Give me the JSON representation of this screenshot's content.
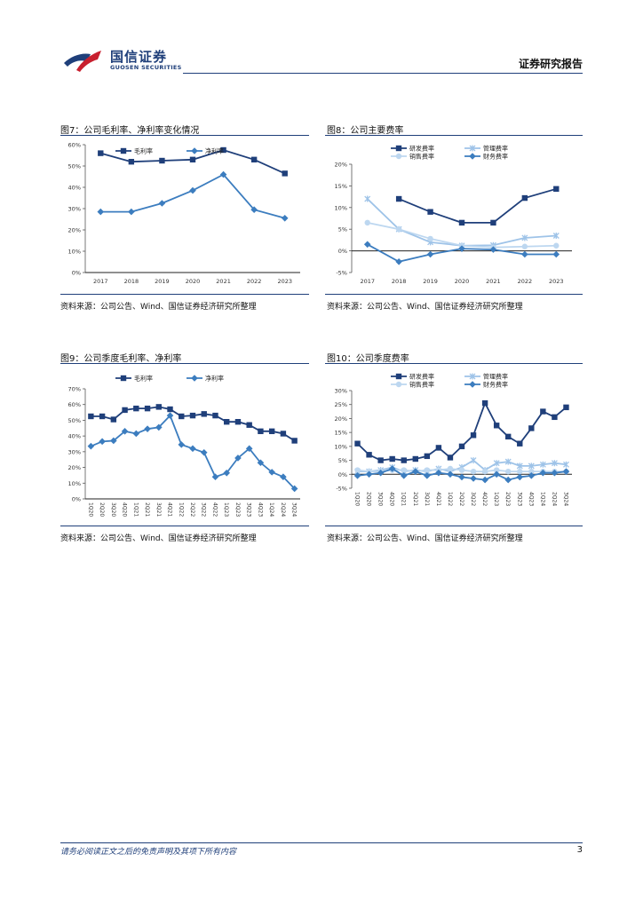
{
  "header": {
    "logo_cn": "国信证券",
    "logo_en": "GUOSEN SECURITIES",
    "report_type": "证券研究报告"
  },
  "figures": [
    {
      "title": "图7：公司毛利率、净利率变化情况",
      "source": "资料来源：公司公告、Wind、国信证券经济研究所整理"
    },
    {
      "title": "图8：公司主要费率",
      "source": "资料来源：公司公告、Wind、国信证券经济研究所整理"
    },
    {
      "title": "图9：公司季度毛利率、净利率",
      "source": "资料来源：公司公告、Wind、国信证券经济研究所整理"
    },
    {
      "title": "图10：公司季度费率",
      "source": "资料来源：公司公告、Wind、国信证券经济研究所整理"
    }
  ],
  "footer": {
    "disclaimer": "请务必阅读正文之后的免责声明及其项下所有内容",
    "page": "3"
  },
  "colors": {
    "dark": "#1f3f7a",
    "mid": "#3c7dbf",
    "light": "#9ec3e8",
    "lighter": "#bdd7f0"
  },
  "chart_data": [
    {
      "type": "line",
      "categories": [
        "2017",
        "2018",
        "2019",
        "2020",
        "2021",
        "2022",
        "2023"
      ],
      "ylim": [
        0,
        60
      ],
      "yticks": [
        0,
        10,
        20,
        30,
        40,
        50,
        60
      ],
      "ytick_labels": [
        "0%",
        "10%",
        "20%",
        "30%",
        "40%",
        "50%",
        "60%"
      ],
      "series": [
        {
          "name": "毛利率",
          "marker": "square",
          "color": "#1f3f7a",
          "values": [
            56,
            52,
            52.5,
            53,
            57.5,
            53,
            46.5
          ]
        },
        {
          "name": "净利率",
          "marker": "diamond",
          "color": "#3c7dbf",
          "values": [
            28.5,
            28.5,
            32.5,
            38.5,
            46,
            29.5,
            25.5
          ]
        }
      ]
    },
    {
      "type": "line",
      "categories": [
        "2017",
        "2018",
        "2019",
        "2020",
        "2021",
        "2022",
        "2023"
      ],
      "ylim": [
        -5,
        20
      ],
      "yticks": [
        -5,
        0,
        5,
        10,
        15,
        20
      ],
      "ytick_labels": [
        "-5%",
        "0%",
        "5%",
        "10%",
        "15%",
        "20%"
      ],
      "series": [
        {
          "name": "研发费率",
          "marker": "square",
          "color": "#1f3f7a",
          "values": [
            null,
            12,
            9,
            6.5,
            6.5,
            12.2,
            14.3
          ]
        },
        {
          "name": "管理费率",
          "marker": "cross",
          "color": "#9ec3e8",
          "values": [
            12,
            5,
            2,
            1.2,
            1.3,
            3,
            3.5
          ]
        },
        {
          "name": "销售费率",
          "marker": "circle",
          "color": "#bdd7f0",
          "values": [
            6.5,
            5,
            2.8,
            1.2,
            0.8,
            1,
            1.2
          ]
        },
        {
          "name": "财务费率",
          "marker": "diamond",
          "color": "#3c7dbf",
          "values": [
            1.5,
            -2.5,
            -0.8,
            0.5,
            0.3,
            -0.8,
            -0.8
          ]
        }
      ]
    },
    {
      "type": "line",
      "categories": [
        "1Q20",
        "2Q20",
        "3Q20",
        "4Q20",
        "1Q21",
        "2Q21",
        "3Q21",
        "4Q21",
        "1Q22",
        "2Q22",
        "3Q22",
        "4Q22",
        "1Q23",
        "2Q23",
        "3Q23",
        "4Q23",
        "1Q24",
        "2Q24",
        "3Q24"
      ],
      "ylim": [
        0,
        70
      ],
      "yticks": [
        0,
        10,
        20,
        30,
        40,
        50,
        60,
        70
      ],
      "ytick_labels": [
        "0%",
        "10%",
        "20%",
        "30%",
        "40%",
        "50%",
        "60%",
        "70%"
      ],
      "series": [
        {
          "name": "毛利率",
          "marker": "square",
          "color": "#1f3f7a",
          "values": [
            52.5,
            52.5,
            50.5,
            56.5,
            57.5,
            57.5,
            58.5,
            57,
            52.5,
            53,
            54,
            53,
            49,
            49,
            47,
            43,
            43,
            41.5,
            37
          ]
        },
        {
          "name": "净利率",
          "marker": "diamond",
          "color": "#3c7dbf",
          "values": [
            33.5,
            36.5,
            37,
            43,
            41.5,
            44.5,
            45.5,
            53,
            34.5,
            32,
            29.5,
            14,
            16.5,
            26,
            32,
            23,
            17,
            14,
            6.5
          ]
        }
      ]
    },
    {
      "type": "line",
      "categories": [
        "1Q20",
        "2Q20",
        "3Q20",
        "4Q20",
        "1Q21",
        "2Q21",
        "3Q21",
        "4Q21",
        "1Q22",
        "2Q22",
        "3Q22",
        "4Q22",
        "1Q23",
        "2Q23",
        "3Q23",
        "4Q23",
        "1Q24",
        "2Q24",
        "3Q24"
      ],
      "ylim": [
        -5,
        30
      ],
      "yticks": [
        -5,
        0,
        5,
        10,
        15,
        20,
        25,
        30
      ],
      "ytick_labels": [
        "-5%",
        "0%",
        "5%",
        "10%",
        "15%",
        "20%",
        "25%",
        "30%"
      ],
      "series": [
        {
          "name": "研发费率",
          "marker": "square",
          "color": "#1f3f7a",
          "values": [
            11,
            7,
            5,
            5.5,
            5,
            5.5,
            6.5,
            9.5,
            6,
            10,
            14,
            25.5,
            17.5,
            13.5,
            11,
            16.5,
            22.5,
            20.5,
            24
          ]
        },
        {
          "name": "管理费率",
          "marker": "cross",
          "color": "#9ec3e8",
          "values": [
            1,
            1,
            1.5,
            2.5,
            1,
            1.5,
            1,
            2,
            1,
            2.5,
            5,
            1.5,
            4,
            4.5,
            3,
            3,
            3.5,
            4,
            3.5
          ]
        },
        {
          "name": "销售费率",
          "marker": "circle",
          "color": "#bdd7f0",
          "values": [
            1.5,
            1,
            1,
            1.5,
            1.5,
            1,
            1.5,
            1.5,
            2,
            1.5,
            1,
            1,
            1.5,
            1,
            1,
            1,
            1,
            1,
            1
          ]
        },
        {
          "name": "财务费率",
          "marker": "diamond",
          "color": "#3c7dbf",
          "values": [
            -0.5,
            0,
            0.5,
            2,
            -0.5,
            1,
            -0.5,
            0.5,
            0,
            -1,
            -1.5,
            -2,
            0,
            -2,
            -1,
            -0.5,
            0.5,
            0.5,
            1
          ]
        }
      ]
    }
  ]
}
